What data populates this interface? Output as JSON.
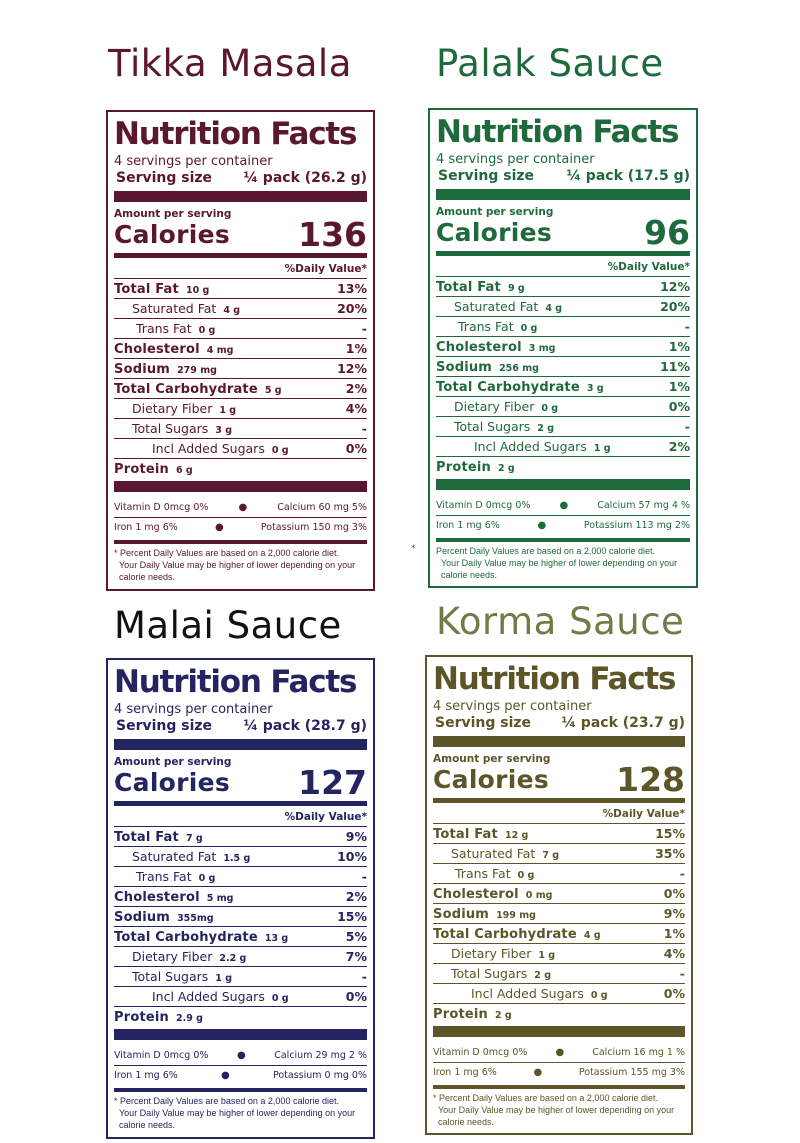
{
  "panels": [
    {
      "name": "Tikka Masala",
      "color": "#5a1730",
      "nf_title": "Nutrition Facts",
      "servings": "4 servings per container",
      "serving_size_label": "Serving size",
      "serving_size_value": "¼ pack (26.2 g)",
      "amount_label": "Amount per serving",
      "calories_label": "Calories",
      "calories": "136",
      "dv_header": "%Daily Value*",
      "rows": [
        {
          "label": "Total Fat",
          "amount": "10 g",
          "dv": "13%"
        },
        {
          "label": "Saturated Fat",
          "amount": "4 g",
          "dv": "20%"
        },
        {
          "label": "Trans Fat",
          "amount": "0 g",
          "dv": "-"
        },
        {
          "label": "Cholesterol",
          "amount": "4 mg",
          "dv": "1%"
        },
        {
          "label": "Sodium",
          "amount": "279 mg",
          "dv": "12%"
        },
        {
          "label": "Total Carbohydrate",
          "amount": "5 g",
          "dv": "2%"
        },
        {
          "label": "Dietary Fiber",
          "amount": "1 g",
          "dv": "4%"
        },
        {
          "label": "Total Sugars",
          "amount": "3 g",
          "dv": "-"
        },
        {
          "label": "Incl Added Sugars",
          "amount": "0 g",
          "dv": "0%"
        },
        {
          "label": "Protein",
          "amount": "6 g",
          "dv": ""
        }
      ],
      "vit_d": "Vitamin D 0mcg 0%",
      "calcium": "Calcium 60 mg 5%",
      "iron": "Iron 1 mg 6%",
      "potassium": "Potassium 150 mg 3%",
      "footnote": [
        "* Percent Daily Values are  based on a 2,000 calorie diet.",
        "Your Daily Value may be higher of lower depending on your",
        "calorie needs."
      ]
    },
    {
      "name": "Palak Sauce",
      "color": "#1f6a3c",
      "nf_title": "Nutrition Facts",
      "servings": "4 servings per container",
      "serving_size_label": "Serving size",
      "serving_size_value": "¼ pack (17.5 g)",
      "amount_label": "Amount per serving",
      "calories_label": "Calories",
      "calories": "96",
      "dv_header": "%Daily Value*",
      "rows": [
        {
          "label": "Total Fat",
          "amount": "9 g",
          "dv": "12%"
        },
        {
          "label": "Saturated Fat",
          "amount": "4 g",
          "dv": "20%"
        },
        {
          "label": "Trans Fat",
          "amount": "0 g",
          "dv": "-"
        },
        {
          "label": "Cholesterol",
          "amount": "3 mg",
          "dv": "1%"
        },
        {
          "label": "Sodium",
          "amount": "256 mg",
          "dv": "11%"
        },
        {
          "label": "Total Carbohydrate",
          "amount": "3 g",
          "dv": "1%"
        },
        {
          "label": "Dietary Fiber",
          "amount": "0 g",
          "dv": "0%"
        },
        {
          "label": "Total Sugars",
          "amount": "2 g",
          "dv": "-"
        },
        {
          "label": "Incl Added Sugars",
          "amount": "1 g",
          "dv": "2%"
        },
        {
          "label": "Protein",
          "amount": "2 g",
          "dv": ""
        }
      ],
      "vit_d": "Vitamin D 0mcg 0%",
      "calcium": "Calcium 57 mg 4 %",
      "iron": "Iron 1 mg 6%",
      "potassium": "Potassium 113 mg 2%",
      "footnote": [
        "Percent Daily Values are  based on a 2,000 calorie diet.",
        "Your Daily Value may be higher of lower depending on your",
        "calorie needs."
      ]
    },
    {
      "name": "Malai Sauce",
      "color": "#242560",
      "nf_title": "Nutrition Facts",
      "servings": "4 servings per container",
      "serving_size_label": "Serving size",
      "serving_size_value": "¼ pack (28.7 g)",
      "amount_label": "Amount per serving",
      "calories_label": "Calories",
      "calories": "127",
      "dv_header": "%Daily Value*",
      "rows": [
        {
          "label": "Total Fat",
          "amount": "7 g",
          "dv": "9%"
        },
        {
          "label": "Saturated Fat",
          "amount": "1.5 g",
          "dv": "10%"
        },
        {
          "label": "Trans Fat",
          "amount": "0 g",
          "dv": "-"
        },
        {
          "label": "Cholesterol",
          "amount": "5 mg",
          "dv": "2%"
        },
        {
          "label": "Sodium",
          "amount": "355mg",
          "dv": "15%"
        },
        {
          "label": "Total Carbohydrate",
          "amount": "13 g",
          "dv": "5%"
        },
        {
          "label": "Dietary Fiber",
          "amount": "2.2 g",
          "dv": "7%"
        },
        {
          "label": "Total Sugars",
          "amount": "1 g",
          "dv": "-"
        },
        {
          "label": "Incl Added Sugars",
          "amount": "0 g",
          "dv": "0%"
        },
        {
          "label": "Protein",
          "amount": "2.9 g",
          "dv": ""
        }
      ],
      "vit_d": "Vitamin D 0mcg 0%",
      "calcium": "Calcium 29 mg 2 %",
      "iron": "Iron 1 mg 6%",
      "potassium": "Potassium 0 mg 0%",
      "footnote": [
        "* Percent Daily Values are  based on a 2,000 calorie diet.",
        "Your Daily Value may be higher of lower depending on your",
        "calorie needs."
      ]
    },
    {
      "name": "Korma Sauce",
      "color": "#5c5527",
      "title_color": "#6f7c45",
      "nf_title": "Nutrition Facts",
      "servings": "4 servings per container",
      "serving_size_label": "Serving size",
      "serving_size_value": "¼ pack (23.7 g)",
      "amount_label": "Amount per serving",
      "calories_label": "Calories",
      "calories": "128",
      "dv_header": "%Daily Value*",
      "rows": [
        {
          "label": "Total Fat",
          "amount": "12 g",
          "dv": "15%"
        },
        {
          "label": "Saturated Fat",
          "amount": "7 g",
          "dv": "35%"
        },
        {
          "label": "Trans Fat",
          "amount": "0 g",
          "dv": "-"
        },
        {
          "label": "Cholesterol",
          "amount": "0 mg",
          "dv": "0%"
        },
        {
          "label": "Sodium",
          "amount": "199 mg",
          "dv": "9%"
        },
        {
          "label": "Total Carbohydrate",
          "amount": "4 g",
          "dv": "1%"
        },
        {
          "label": "Dietary Fiber",
          "amount": "1 g",
          "dv": "4%"
        },
        {
          "label": "Total Sugars",
          "amount": "2 g",
          "dv": "-"
        },
        {
          "label": "Incl Added Sugars",
          "amount": "0 g",
          "dv": "0%"
        },
        {
          "label": "Protein",
          "amount": "2 g",
          "dv": ""
        }
      ],
      "vit_d": "Vitamin D 0mcg 0%",
      "calcium": "Calcium 16 mg 1 %",
      "iron": "Iron 1 mg 6%",
      "potassium": "Potassium 155 mg 3%",
      "footnote": [
        "* Percent Daily Values are  based on a 2,000 calorie diet.",
        "Your Daily Value may be higher of lower depending on your",
        "calorie needs."
      ]
    }
  ],
  "stray_mark": "*"
}
